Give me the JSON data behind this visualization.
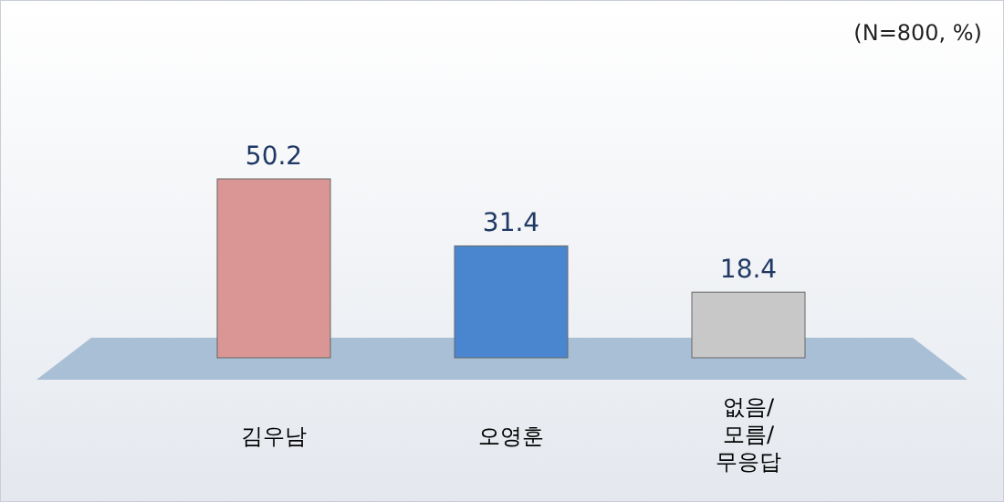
{
  "chart_data": {
    "type": "bar",
    "categories": [
      "김우남",
      "오영훈",
      "없음/모름/무응답"
    ],
    "values": [
      50.2,
      31.4,
      18.4
    ],
    "colors": [
      "#d99694",
      "#4a86d0",
      "#c8c8c8"
    ],
    "data_labels": true,
    "annotations": [
      "(N=800, %)"
    ]
  }
}
